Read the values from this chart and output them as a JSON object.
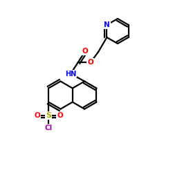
{
  "bg_color": "#ffffff",
  "atom_colors": {
    "N": "#0000ff",
    "O": "#ff0000",
    "S": "#aaaa00",
    "Cl": "#aa00aa",
    "C": "#000000"
  },
  "bond_color": "#000000",
  "bond_width": 1.6
}
